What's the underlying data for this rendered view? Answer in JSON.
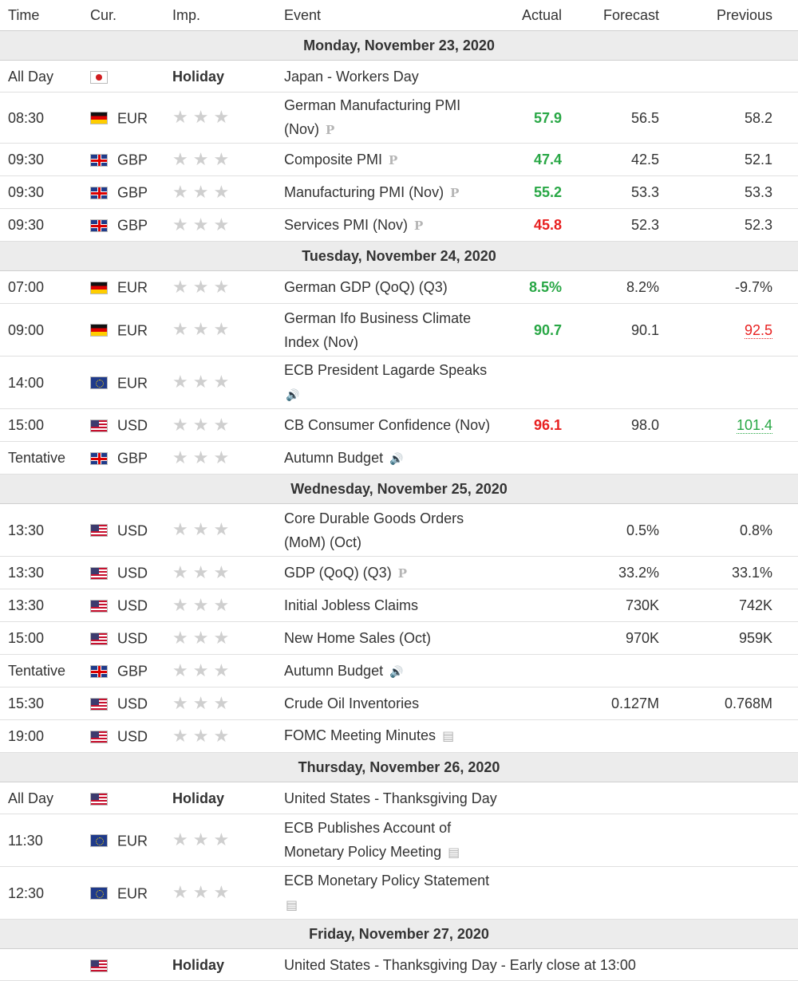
{
  "header": {
    "time": "Time",
    "currency": "Cur.",
    "importance": "Imp.",
    "event": "Event",
    "actual": "Actual",
    "forecast": "Forecast",
    "previous": "Previous"
  },
  "stars": "★★★",
  "holiday_label": "Holiday",
  "tags": {
    "preliminary": "P",
    "speech": "🔊",
    "report": "▤"
  },
  "days": [
    {
      "date": "Monday, November 23, 2020"
    },
    {
      "date": "Tuesday, November 24, 2020"
    },
    {
      "date": "Wednesday, November 25, 2020"
    },
    {
      "date": "Thursday, November 26, 2020"
    },
    {
      "date": "Friday, November 27, 2020"
    }
  ],
  "events": [
    {
      "time": "All Day",
      "currency": "",
      "event": "Japan - Workers Day",
      "actual": "",
      "forecast": "",
      "previous": ""
    },
    {
      "time": "08:30",
      "currency": "EUR",
      "event_line1": "German Manufacturing PMI",
      "event_line2": "(Nov)",
      "actual": "57.9",
      "forecast": "56.5",
      "previous": "58.2"
    },
    {
      "time": "09:30",
      "currency": "GBP",
      "event": "Composite PMI",
      "actual": "47.4",
      "forecast": "42.5",
      "previous": "52.1"
    },
    {
      "time": "09:30",
      "currency": "GBP",
      "event": "Manufacturing PMI (Nov)",
      "actual": "55.2",
      "forecast": "53.3",
      "previous": "53.3"
    },
    {
      "time": "09:30",
      "currency": "GBP",
      "event": "Services PMI (Nov)",
      "actual": "45.8",
      "forecast": "52.3",
      "previous": "52.3"
    },
    {
      "time": "07:00",
      "currency": "EUR",
      "event": "German GDP (QoQ) (Q3)",
      "actual": "8.5%",
      "forecast": "8.2%",
      "previous": "-9.7%"
    },
    {
      "time": "09:00",
      "currency": "EUR",
      "event_line1": "German Ifo Business Climate",
      "event_line2": "Index (Nov)",
      "actual": "90.7",
      "forecast": "90.1",
      "previous": "92.5"
    },
    {
      "time": "14:00",
      "currency": "EUR",
      "event": "ECB President Lagarde Speaks",
      "actual": "",
      "forecast": "",
      "previous": ""
    },
    {
      "time": "15:00",
      "currency": "USD",
      "event": "CB Consumer Confidence (Nov)",
      "actual": "96.1",
      "forecast": "98.0",
      "previous": "101.4"
    },
    {
      "time": "Tentative",
      "currency": "GBP",
      "event": "Autumn Budget",
      "actual": "",
      "forecast": "",
      "previous": ""
    },
    {
      "time": "13:30",
      "currency": "USD",
      "event_line1": "Core Durable Goods Orders",
      "event_line2": "(MoM) (Oct)",
      "actual": "",
      "forecast": "0.5%",
      "previous": "0.8%"
    },
    {
      "time": "13:30",
      "currency": "USD",
      "event": "GDP (QoQ) (Q3)",
      "actual": "",
      "forecast": "33.2%",
      "previous": "33.1%"
    },
    {
      "time": "13:30",
      "currency": "USD",
      "event": "Initial Jobless Claims",
      "actual": "",
      "forecast": "730K",
      "previous": "742K"
    },
    {
      "time": "15:00",
      "currency": "USD",
      "event": "New Home Sales (Oct)",
      "actual": "",
      "forecast": "970K",
      "previous": "959K"
    },
    {
      "time": "Tentative",
      "currency": "GBP",
      "event": "Autumn Budget",
      "actual": "",
      "forecast": "",
      "previous": ""
    },
    {
      "time": "15:30",
      "currency": "USD",
      "event": "Crude Oil Inventories",
      "actual": "",
      "forecast": "0.127M",
      "previous": "0.768M"
    },
    {
      "time": "19:00",
      "currency": "USD",
      "event": "FOMC Meeting Minutes",
      "actual": "",
      "forecast": "",
      "previous": ""
    },
    {
      "time": "All Day",
      "currency": "",
      "event": "United States - Thanksgiving Day",
      "actual": "",
      "forecast": "",
      "previous": ""
    },
    {
      "time": "11:30",
      "currency": "EUR",
      "event_line1": "ECB Publishes Account of",
      "event_line2": "Monetary Policy Meeting",
      "actual": "",
      "forecast": "",
      "previous": ""
    },
    {
      "time": "12:30",
      "currency": "EUR",
      "event": "ECB Monetary Policy Statement",
      "actual": "",
      "forecast": "",
      "previous": ""
    },
    {
      "time": "",
      "currency": "",
      "event": "United States - Thanksgiving Day - Early close at 13:00",
      "actual": "",
      "forecast": "",
      "previous": ""
    }
  ]
}
